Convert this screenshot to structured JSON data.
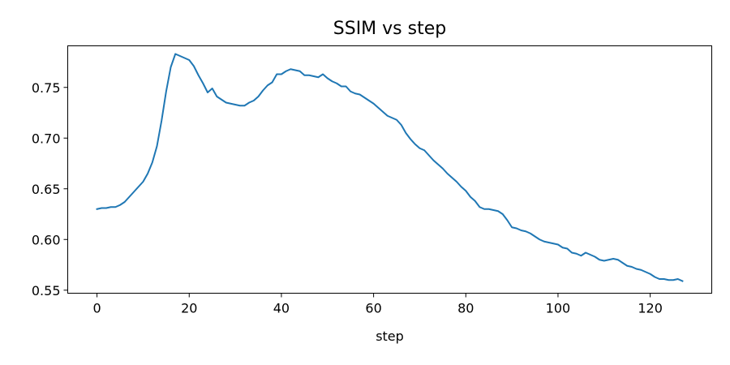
{
  "chart_data": {
    "type": "line",
    "title": "SSIM vs step",
    "xlabel": "step",
    "ylabel": "",
    "xlim": [
      -6.35,
      133.35
    ],
    "ylim": [
      0.547,
      0.791
    ],
    "xticks": [
      0,
      20,
      40,
      60,
      80,
      100,
      120
    ],
    "yticks": [
      0.55,
      0.6,
      0.65,
      0.7,
      0.75
    ],
    "ytick_labels": [
      "0.55",
      "0.60",
      "0.65",
      "0.70",
      "0.75"
    ],
    "grid": false,
    "series": [
      {
        "name": "",
        "color": "#1f77b4",
        "x": [
          0,
          1,
          2,
          3,
          4,
          5,
          6,
          7,
          8,
          9,
          10,
          11,
          12,
          13,
          14,
          15,
          16,
          17,
          18,
          19,
          20,
          21,
          22,
          23,
          24,
          25,
          26,
          27,
          28,
          29,
          30,
          31,
          32,
          33,
          34,
          35,
          36,
          37,
          38,
          39,
          40,
          41,
          42,
          43,
          44,
          45,
          46,
          47,
          48,
          49,
          50,
          51,
          52,
          53,
          54,
          55,
          56,
          57,
          58,
          59,
          60,
          61,
          62,
          63,
          64,
          65,
          66,
          67,
          68,
          69,
          70,
          71,
          72,
          73,
          74,
          75,
          76,
          77,
          78,
          79,
          80,
          81,
          82,
          83,
          84,
          85,
          86,
          87,
          88,
          89,
          90,
          91,
          92,
          93,
          94,
          95,
          96,
          97,
          98,
          99,
          100,
          101,
          102,
          103,
          104,
          105,
          106,
          107,
          108,
          109,
          110,
          111,
          112,
          113,
          114,
          115,
          116,
          117,
          118,
          119,
          120,
          121,
          122,
          123,
          124,
          125,
          126,
          127
        ],
        "values": [
          0.63,
          0.631,
          0.631,
          0.632,
          0.632,
          0.634,
          0.637,
          0.642,
          0.647,
          0.652,
          0.657,
          0.665,
          0.676,
          0.692,
          0.717,
          0.746,
          0.77,
          0.783,
          0.781,
          0.779,
          0.777,
          0.771,
          0.762,
          0.754,
          0.745,
          0.749,
          0.741,
          0.738,
          0.735,
          0.734,
          0.733,
          0.732,
          0.732,
          0.735,
          0.737,
          0.741,
          0.747,
          0.752,
          0.755,
          0.763,
          0.763,
          0.766,
          0.768,
          0.767,
          0.766,
          0.762,
          0.762,
          0.761,
          0.76,
          0.763,
          0.759,
          0.756,
          0.754,
          0.751,
          0.751,
          0.746,
          0.744,
          0.743,
          0.74,
          0.737,
          0.734,
          0.73,
          0.726,
          0.722,
          0.72,
          0.718,
          0.713,
          0.705,
          0.699,
          0.694,
          0.69,
          0.688,
          0.683,
          0.678,
          0.674,
          0.67,
          0.665,
          0.661,
          0.657,
          0.652,
          0.648,
          0.642,
          0.638,
          0.632,
          0.63,
          0.63,
          0.629,
          0.628,
          0.625,
          0.619,
          0.612,
          0.611,
          0.609,
          0.608,
          0.606,
          0.603,
          0.6,
          0.598,
          0.597,
          0.596,
          0.595,
          0.592,
          0.591,
          0.587,
          0.586,
          0.584,
          0.587,
          0.585,
          0.583,
          0.58,
          0.579,
          0.58,
          0.581,
          0.58,
          0.577,
          0.574,
          0.573,
          0.571,
          0.57,
          0.568,
          0.566,
          0.563,
          0.561,
          0.561,
          0.56,
          0.56,
          0.561,
          0.559
        ]
      }
    ]
  }
}
